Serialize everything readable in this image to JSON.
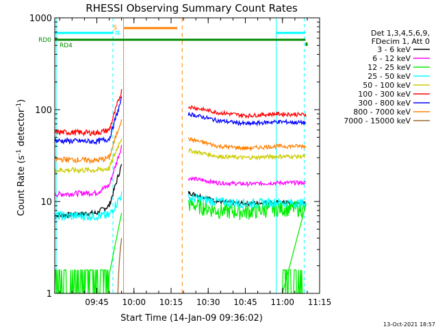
{
  "chart_data": {
    "type": "line",
    "title": "RHESSI Observing Summary Count Rates",
    "xlabel": "Start Time (14-Jan-09 09:36:02)",
    "ylabel_main": "Count Rate (s",
    "ylabel_sup1": "-1",
    "ylabel_mid": " detector",
    "ylabel_sup2": "-1",
    "ylabel_end": ")",
    "yscale": "log",
    "ylim": [
      1,
      1000
    ],
    "xlim_minutes": [
      -8,
      99
    ],
    "x_ticks": [
      {
        "m": 9,
        "label": "09:45"
      },
      {
        "m": 24,
        "label": "10:00"
      },
      {
        "m": 39,
        "label": "10:15"
      },
      {
        "m": 54,
        "label": "10:30"
      },
      {
        "m": 69,
        "label": "10:45"
      },
      {
        "m": 84,
        "label": "11:00"
      },
      {
        "m": 99,
        "label": "11:15"
      }
    ],
    "y_ticks": [
      {
        "v": 1,
        "label": "1"
      },
      {
        "v": 10,
        "label": "10"
      },
      {
        "v": 100,
        "label": "100"
      },
      {
        "v": 1000,
        "label": "1000"
      }
    ],
    "legend": {
      "header": [
        "Det 1,3,4,5,6,9,",
        "FDecim 1, Att 0"
      ],
      "position": "right"
    },
    "series": [
      {
        "name": "3 - 6 keV",
        "color": "#000000",
        "pre": [
          7,
          7.5,
          9,
          25
        ],
        "post": [
          12.5,
          10,
          9.5,
          9.8,
          9.5
        ],
        "shape": "ramp"
      },
      {
        "name": "6 - 12 keV",
        "color": "#ff00ff",
        "pre": [
          12,
          12.5,
          15,
          40
        ],
        "post": [
          18,
          16,
          15.5,
          16,
          16
        ],
        "shape": "ramp"
      },
      {
        "name": "12 - 25 keV",
        "color": "#00ee00",
        "pre": [
          1.6,
          1.6,
          1.6,
          7.5
        ],
        "post": [
          9.5,
          8,
          7.8,
          8.5,
          8.5
        ],
        "shape": "noisy"
      },
      {
        "name": "25 - 50 keV",
        "color": "#00ffff",
        "pre": [
          7,
          7,
          7,
          12
        ],
        "post": [
          11,
          10,
          9.5,
          9.8,
          9.5
        ],
        "shape": "flat"
      },
      {
        "name": "50 - 100 keV",
        "color": "#cccc00",
        "pre": [
          22,
          22,
          23,
          50
        ],
        "post": [
          36,
          31,
          30,
          31,
          31
        ],
        "shape": "ramp"
      },
      {
        "name": "100 - 300 keV",
        "color": "#ff0000",
        "pre": [
          57,
          56,
          60,
          160
        ],
        "post": [
          108,
          93,
          86,
          90,
          88
        ],
        "shape": "ramp"
      },
      {
        "name": "300 - 800 keV",
        "color": "#0000ff",
        "pre": [
          46,
          45,
          48,
          130
        ],
        "post": [
          90,
          76,
          70,
          74,
          72
        ],
        "shape": "ramp"
      },
      {
        "name": "800 - 7000 keV",
        "color": "#ff8000",
        "pre": [
          29,
          28,
          30,
          80
        ],
        "post": [
          48,
          40,
          38,
          40,
          40
        ],
        "shape": "ramp"
      },
      {
        "name": "7000 - 15000 keV",
        "color": "#996633",
        "pre": [
          0,
          0,
          0,
          4
        ],
        "post": [
          0,
          0,
          0,
          0,
          0
        ],
        "shape": "tail"
      }
    ],
    "time_segments": {
      "pre_start": -8,
      "pre_end": 19,
      "post_start": 46,
      "post_end": 93.5
    },
    "overlays": {
      "rd0_label": "RD0",
      "rd4_label": "RD4",
      "s_label": "S",
      "n_label": "N",
      "rd0_color": "#00ffff",
      "rd4_color": "#008800",
      "saa_color": "#ff8000",
      "night_color": "#00ffff"
    }
  },
  "footer": {
    "date": "13-Oct-2021 18:57"
  }
}
